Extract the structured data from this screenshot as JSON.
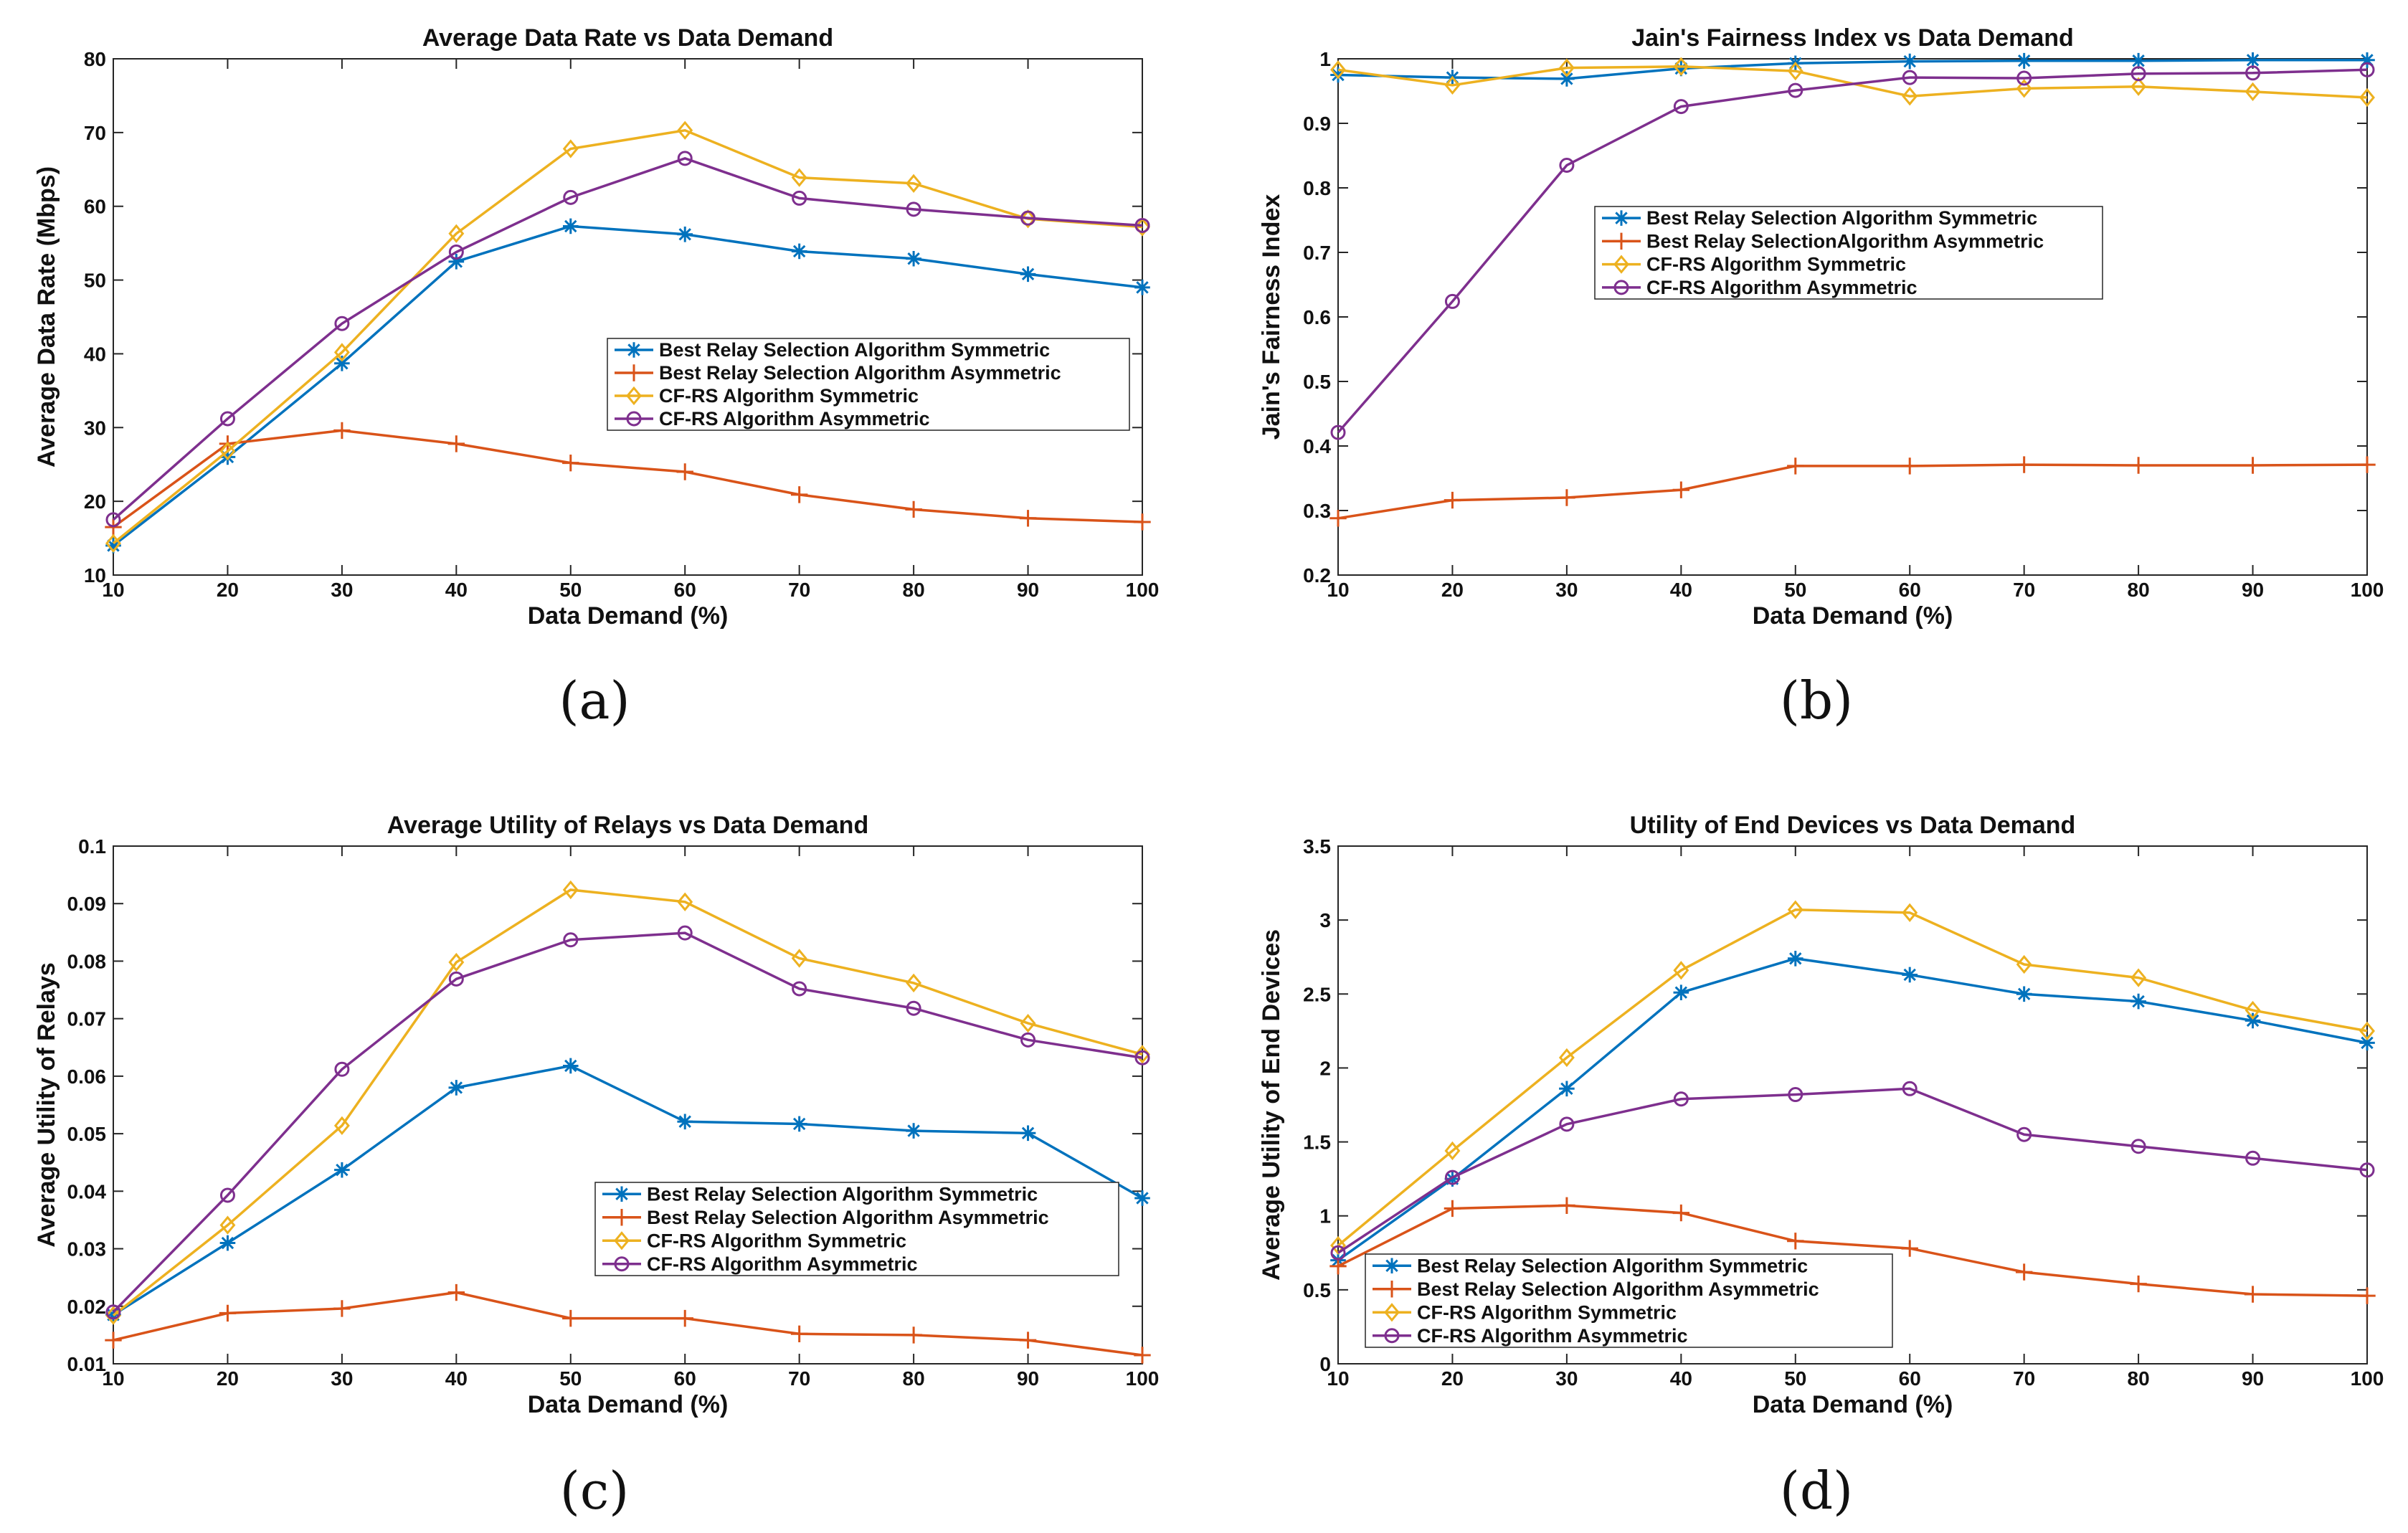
{
  "colors": {
    "blue": "#0072BD",
    "orange": "#D95319",
    "yellow": "#EDB120",
    "purple": "#7E2F8E"
  },
  "chart_data": [
    {
      "panel_label": "(a)",
      "type": "line",
      "title": "Average Data Rate vs Data Demand",
      "xlabel": "Data Demand (%)",
      "ylabel": "Average Data Rate (Mbps)",
      "xlim": [
        10,
        100
      ],
      "ylim": [
        10,
        80
      ],
      "xticks": [
        "10",
        "20",
        "30",
        "40",
        "50",
        "60",
        "70",
        "80",
        "90",
        "100"
      ],
      "yticks": [
        "10",
        "20",
        "30",
        "40",
        "50",
        "60",
        "70",
        "80"
      ],
      "legend_position": "center-right",
      "x": [
        10,
        20,
        30,
        40,
        50,
        60,
        70,
        80,
        90,
        100
      ],
      "series": [
        {
          "name": "Best Relay Selection Algorithm Symmetric",
          "marker": "star",
          "color": "#0072BD",
          "values": [
            14.0,
            26.0,
            38.7,
            52.5,
            57.3,
            56.2,
            53.9,
            52.9,
            50.8,
            49.0
          ]
        },
        {
          "name": "Best Relay Selection Algorithm Asymmetric",
          "marker": "plus",
          "color": "#D95319",
          "values": [
            16.5,
            27.8,
            29.6,
            27.8,
            25.2,
            24.0,
            20.9,
            18.9,
            17.7,
            17.2
          ]
        },
        {
          "name": "CF-RS Algorithm Symmetric",
          "marker": "diamond",
          "color": "#EDB120",
          "values": [
            14.3,
            26.8,
            40.2,
            56.3,
            67.8,
            70.3,
            63.9,
            63.1,
            58.3,
            57.2
          ]
        },
        {
          "name": "CF-RS Algorithm Asymmetric",
          "marker": "circle",
          "color": "#7E2F8E",
          "values": [
            17.5,
            31.2,
            44.1,
            53.8,
            61.2,
            66.5,
            61.1,
            59.6,
            58.4,
            57.4
          ]
        }
      ]
    },
    {
      "panel_label": "(b)",
      "type": "line",
      "title": "Jain's Fairness Index vs Data Demand",
      "xlabel": "Data Demand (%)",
      "ylabel": "Jain's Fairness Index",
      "xlim": [
        10,
        100
      ],
      "ylim": [
        0.2,
        1
      ],
      "xticks": [
        "10",
        "20",
        "30",
        "40",
        "50",
        "60",
        "70",
        "80",
        "90",
        "100"
      ],
      "yticks": [
        "0.2",
        "0.3",
        "0.4",
        "0.5",
        "0.6",
        "0.7",
        "0.8",
        "0.9",
        "1"
      ],
      "legend_position": "center-right",
      "x": [
        10,
        20,
        30,
        40,
        50,
        60,
        70,
        80,
        90,
        100
      ],
      "series": [
        {
          "name": "Best Relay Selection Algorithm Symmetric",
          "marker": "star",
          "color": "#0072BD",
          "values": [
            0.975,
            0.971,
            0.969,
            0.985,
            0.993,
            0.996,
            0.997,
            0.997,
            0.998,
            0.998
          ]
        },
        {
          "name": "Best Relay SelectionAlgorithm Asymmetric",
          "marker": "plus",
          "color": "#D95319",
          "values": [
            0.288,
            0.316,
            0.32,
            0.332,
            0.369,
            0.369,
            0.371,
            0.37,
            0.37,
            0.371
          ]
        },
        {
          "name": "CF-RS Algorithm Symmetric",
          "marker": "diamond",
          "color": "#EDB120",
          "values": [
            0.983,
            0.959,
            0.986,
            0.988,
            0.981,
            0.942,
            0.954,
            0.957,
            0.949,
            0.94
          ]
        },
        {
          "name": "CF-RS Algorithm Asymmetric",
          "marker": "circle",
          "color": "#7E2F8E",
          "values": [
            0.421,
            0.624,
            0.835,
            0.926,
            0.951,
            0.971,
            0.97,
            0.977,
            0.978,
            0.983
          ]
        }
      ]
    },
    {
      "panel_label": "(c)",
      "type": "line",
      "title": "Average Utility of Relays vs Data Demand",
      "xlabel": "Data Demand (%)",
      "ylabel": "Average Utility of Relays",
      "xlim": [
        10,
        100
      ],
      "ylim": [
        0.01,
        0.1
      ],
      "xticks": [
        "10",
        "20",
        "30",
        "40",
        "50",
        "60",
        "70",
        "80",
        "90",
        "100"
      ],
      "yticks": [
        "0.01",
        "0.02",
        "0.03",
        "0.04",
        "0.05",
        "0.06",
        "0.07",
        "0.08",
        "0.09",
        "0.1"
      ],
      "legend_position": "lower-right",
      "x": [
        10,
        20,
        30,
        40,
        50,
        60,
        70,
        80,
        90,
        100
      ],
      "series": [
        {
          "name": "Best Relay Selection Algorithm Symmetric",
          "marker": "star",
          "color": "#0072BD",
          "values": [
            0.0185,
            0.031,
            0.0437,
            0.058,
            0.0618,
            0.0521,
            0.0517,
            0.0505,
            0.0501,
            0.0388
          ]
        },
        {
          "name": "Best Relay Selection Algorithm Asymmetric",
          "marker": "plus",
          "color": "#D95319",
          "values": [
            0.0141,
            0.0188,
            0.0196,
            0.0224,
            0.0179,
            0.0179,
            0.0152,
            0.015,
            0.0141,
            0.0115
          ]
        },
        {
          "name": "CF-RS Algorithm Symmetric",
          "marker": "diamond",
          "color": "#EDB120",
          "values": [
            0.0184,
            0.0341,
            0.0514,
            0.0798,
            0.0924,
            0.0903,
            0.0805,
            0.0762,
            0.0692,
            0.0638
          ]
        },
        {
          "name": "CF-RS Algorithm Asymmetric",
          "marker": "circle",
          "color": "#7E2F8E",
          "values": [
            0.019,
            0.0393,
            0.0612,
            0.0769,
            0.0837,
            0.0849,
            0.0752,
            0.0718,
            0.0663,
            0.0632
          ]
        }
      ]
    },
    {
      "panel_label": "(d)",
      "type": "line",
      "title": "Utility of End Devices vs Data Demand",
      "xlabel": "Data Demand (%)",
      "ylabel": "Average Utility of End Devices",
      "xlim": [
        10,
        100
      ],
      "ylim": [
        0,
        3.5
      ],
      "xticks": [
        "10",
        "20",
        "30",
        "40",
        "50",
        "60",
        "70",
        "80",
        "90",
        "100"
      ],
      "yticks": [
        "0",
        "0.5",
        "1",
        "1.5",
        "2",
        "2.5",
        "3",
        "3.5"
      ],
      "legend_position": "lower-left",
      "x": [
        10,
        20,
        30,
        40,
        50,
        60,
        70,
        80,
        90,
        100
      ],
      "series": [
        {
          "name": "Best Relay Selection Algorithm Symmetric",
          "marker": "star",
          "color": "#0072BD",
          "values": [
            0.7,
            1.25,
            1.86,
            2.51,
            2.74,
            2.63,
            2.5,
            2.45,
            2.32,
            2.17
          ]
        },
        {
          "name": "Best Relay Selection Algorithm Asymmetric",
          "marker": "plus",
          "color": "#D95319",
          "values": [
            0.66,
            1.05,
            1.07,
            1.02,
            0.83,
            0.78,
            0.62,
            0.54,
            0.47,
            0.46
          ]
        },
        {
          "name": "CF-RS Algorithm Symmetric",
          "marker": "diamond",
          "color": "#EDB120",
          "values": [
            0.8,
            1.44,
            2.07,
            2.66,
            3.07,
            3.05,
            2.7,
            2.61,
            2.39,
            2.25
          ]
        },
        {
          "name": "CF-RS Algorithm Asymmetric",
          "marker": "circle",
          "color": "#7E2F8E",
          "values": [
            0.75,
            1.26,
            1.62,
            1.79,
            1.82,
            1.86,
            1.55,
            1.47,
            1.39,
            1.31
          ]
        }
      ]
    }
  ]
}
